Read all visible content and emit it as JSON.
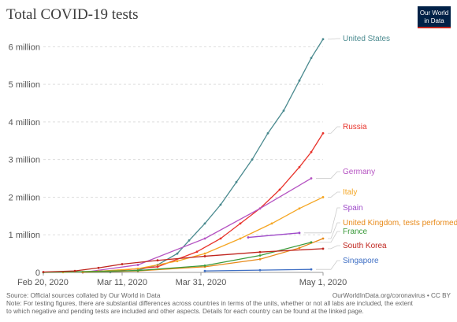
{
  "chart_data": {
    "type": "line",
    "title": "Total COVID-19 tests",
    "x_ticks": [
      "Feb 20, 2020",
      "Mar 11, 2020",
      "Mar 31, 2020",
      "May 1, 2020"
    ],
    "xlim": [
      "2020-02-20",
      "2020-05-01"
    ],
    "y_ticks": [
      {
        "value": 0,
        "label": "0"
      },
      {
        "value": 1000000,
        "label": "1 million"
      },
      {
        "value": 2000000,
        "label": "2 million"
      },
      {
        "value": 3000000,
        "label": "3 million"
      },
      {
        "value": 4000000,
        "label": "4 million"
      },
      {
        "value": 5000000,
        "label": "5 million"
      },
      {
        "value": 6000000,
        "label": "6 million"
      }
    ],
    "ylim": [
      0,
      6300000
    ],
    "grid": "horizontal dashed",
    "series": [
      {
        "name": "United States",
        "color": "#4a8a8f",
        "x": [
          "2020-03-01",
          "2020-03-08",
          "2020-03-15",
          "2020-03-20",
          "2020-03-25",
          "2020-03-28",
          "2020-04-01",
          "2020-04-05",
          "2020-04-09",
          "2020-04-13",
          "2020-04-17",
          "2020-04-21",
          "2020-04-25",
          "2020-04-28",
          "2020-05-01"
        ],
        "y": [
          0,
          5000,
          60000,
          200000,
          500000,
          850000,
          1300000,
          1800000,
          2400000,
          3000000,
          3700000,
          4300000,
          5100000,
          5700000,
          6200000
        ]
      },
      {
        "name": "Russia",
        "color": "#e8322a",
        "x": [
          "2020-03-01",
          "2020-03-10",
          "2020-03-20",
          "2020-03-30",
          "2020-04-05",
          "2020-04-10",
          "2020-04-15",
          "2020-04-20",
          "2020-04-25",
          "2020-04-28",
          "2020-05-01"
        ],
        "y": [
          10000,
          50000,
          150000,
          550000,
          900000,
          1300000,
          1700000,
          2200000,
          2800000,
          3200000,
          3700000
        ]
      },
      {
        "name": "Germany",
        "color": "#b553c2",
        "x": [
          "2020-03-01",
          "2020-03-15",
          "2020-04-01",
          "2020-04-15",
          "2020-04-28"
        ],
        "y": [
          0,
          200000,
          900000,
          1700000,
          2500000
        ]
      },
      {
        "name": "Italy",
        "color": "#f5a623",
        "x": [
          "2020-02-25",
          "2020-03-05",
          "2020-03-15",
          "2020-03-25",
          "2020-04-01",
          "2020-04-10",
          "2020-04-18",
          "2020-04-25",
          "2020-05-01"
        ],
        "y": [
          5000,
          30000,
          100000,
          300000,
          500000,
          900000,
          1300000,
          1700000,
          2000000
        ]
      },
      {
        "name": "Spain",
        "color": "#9e49c9",
        "x": [
          "2020-04-12",
          "2020-04-25"
        ],
        "y": [
          930000,
          1050000
        ]
      },
      {
        "name": "United Kingdom, tests performed",
        "color": "#e88a1a",
        "x": [
          "2020-03-01",
          "2020-03-15",
          "2020-04-01",
          "2020-04-15",
          "2020-04-25",
          "2020-05-01"
        ],
        "y": [
          5000,
          40000,
          150000,
          350000,
          650000,
          900000
        ]
      },
      {
        "name": "France",
        "color": "#3b9a3b",
        "x": [
          "2020-02-20",
          "2020-03-15",
          "2020-04-01",
          "2020-04-15",
          "2020-04-28"
        ],
        "y": [
          0,
          50000,
          180000,
          450000,
          800000
        ]
      },
      {
        "name": "South Korea",
        "color": "#c0261f",
        "x": [
          "2020-02-20",
          "2020-02-28",
          "2020-03-05",
          "2020-03-11",
          "2020-03-20",
          "2020-04-01",
          "2020-04-15",
          "2020-05-01"
        ],
        "y": [
          10000,
          40000,
          120000,
          220000,
          320000,
          430000,
          540000,
          630000
        ]
      },
      {
        "name": "Singapore",
        "color": "#3f6fc4",
        "x": [
          "2020-04-01",
          "2020-04-15",
          "2020-04-28"
        ],
        "y": [
          40000,
          60000,
          80000
        ]
      }
    ]
  },
  "logo": {
    "line1": "Our World",
    "line2": "in Data",
    "background": "#002147"
  },
  "footer": {
    "source": "Source: Official sources collated by Our World in Data",
    "credit": "OurWorldInData.org/coronavirus • CC BY",
    "note_line1": "Note: For testing figures, there are substantial differences across countries in terms of the units, whether or not all labs are included, the extent",
    "note_line2": "to which negative and pending tests are included and other aspects. Details for each country can be found at the linked page."
  }
}
